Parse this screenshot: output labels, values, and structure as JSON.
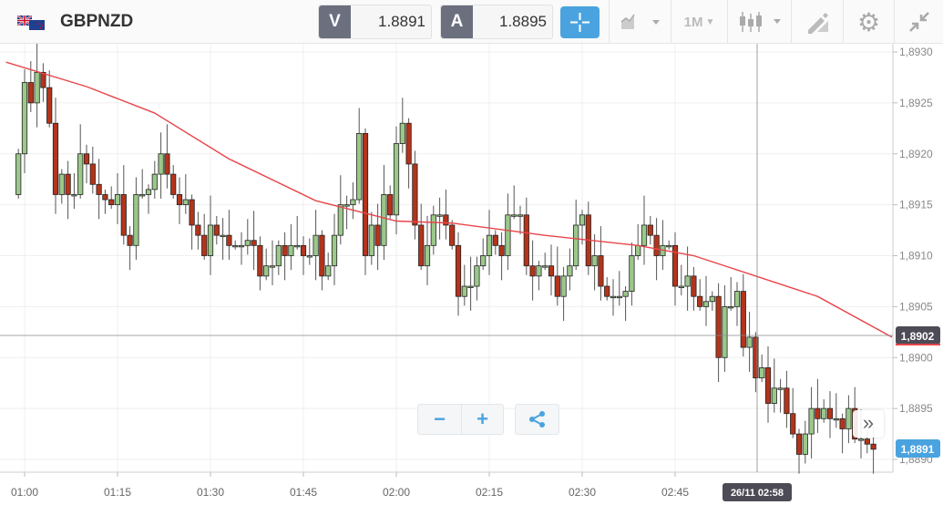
{
  "header": {
    "symbol": "GBPNZD",
    "flag_icon": "gb-nz-flag",
    "sell": {
      "label": "V",
      "value": "1.8891"
    },
    "buy": {
      "label": "A",
      "value": "1.8895"
    },
    "timeframe": "1M",
    "tools": [
      "crosshair-icon",
      "chart-type-icon",
      "timeframe-dropdown",
      "candlestick-icon",
      "drawing-icon",
      "gear-icon",
      "collapse-icon"
    ]
  },
  "colors": {
    "up": "#9bc88a",
    "down": "#b3341b",
    "ma": "#e8464a",
    "accent": "#4aa3df",
    "crosshair_label": "#4d4b55"
  },
  "chart_data": {
    "type": "candlestick",
    "interval_minutes": 1,
    "first_time": "00:59",
    "closes": [
      1.892,
      1.8927,
      1.8925,
      1.8928,
      1.89265,
      1.8923,
      1.8916,
      1.8918,
      1.8916,
      1.8916,
      1.892,
      1.8919,
      1.8917,
      1.8916,
      1.89155,
      1.8915,
      1.8916,
      1.8912,
      1.8911,
      1.8916,
      1.8916,
      1.89165,
      1.8918,
      1.892,
      1.8918,
      1.8916,
      1.8915,
      1.89155,
      1.8913,
      1.8912,
      1.891,
      1.8913,
      1.8912,
      1.8912,
      1.8911,
      1.8911,
      1.8911,
      1.89115,
      1.8911,
      1.8908,
      1.8909,
      1.8909,
      1.8911,
      1.891,
      1.8911,
      1.8911,
      1.891,
      1.891,
      1.8912,
      1.8908,
      1.8909,
      1.8912,
      1.8915,
      1.8915,
      1.89155,
      1.8922,
      1.891,
      1.8913,
      1.8911,
      1.8916,
      1.8914,
      1.8921,
      1.8923,
      1.8919,
      1.8913,
      1.8909,
      1.8911,
      1.8914,
      1.8914,
      1.8913,
      1.8911,
      1.8906,
      1.8907,
      1.8907,
      1.8909,
      1.891,
      1.8912,
      1.8911,
      1.891,
      1.8914,
      1.8914,
      1.8914,
      1.8909,
      1.8908,
      1.8909,
      1.8909,
      1.8908,
      1.8906,
      1.8908,
      1.8909,
      1.8913,
      1.8914,
      1.8909,
      1.891,
      1.8907,
      1.8906,
      1.8906,
      1.8906,
      1.89065,
      1.891,
      1.8911,
      1.8913,
      1.8912,
      1.891,
      1.8911,
      1.8911,
      1.8907,
      1.8907,
      1.8908,
      1.8906,
      1.8905,
      1.89055,
      1.8906,
      1.89,
      1.8905,
      1.8905,
      1.89065,
      1.8901,
      1.8902,
      1.8898,
      1.8899,
      1.88955,
      1.8897,
      1.8897,
      1.88945,
      1.88925,
      1.88905,
      1.88925,
      1.8895,
      1.8894,
      1.8895,
      1.8894,
      1.8894,
      1.8893,
      1.8895,
      1.8892,
      1.8892,
      1.88915,
      1.8891
    ],
    "first_open": 1.8916,
    "moving_average": {
      "times": [
        "00:57",
        "01:10",
        "01:21",
        "01:33",
        "01:47",
        "02:00",
        "02:09",
        "02:24",
        "02:39",
        "02:48",
        "02:58",
        "03:08",
        "03:20"
      ],
      "values": [
        1.8929,
        1.89266,
        1.8924,
        1.89195,
        1.89154,
        1.89134,
        1.89132,
        1.8912,
        1.8911,
        1.891,
        1.8908,
        1.8906,
        1.8902
      ]
    },
    "ylim": [
      1.8889,
      1.8931
    ],
    "y_ticks": [
      "1,8930",
      "1,8925",
      "1,8920",
      "1,8915",
      "1,8910",
      "1,8905",
      "1,8900",
      "1,8895",
      "1,8890"
    ],
    "x_ticks": [
      "01:00",
      "01:15",
      "01:30",
      "01:45",
      "02:00",
      "02:15",
      "02:30",
      "02:45"
    ],
    "crosshair": {
      "price": "1,8902",
      "time": "26/11 02:58"
    },
    "last_price": "1,8891",
    "grid": true
  },
  "controls": {
    "zoom_out": "−",
    "zoom_in": "+",
    "share_icon": "share-icon",
    "next": "»"
  }
}
